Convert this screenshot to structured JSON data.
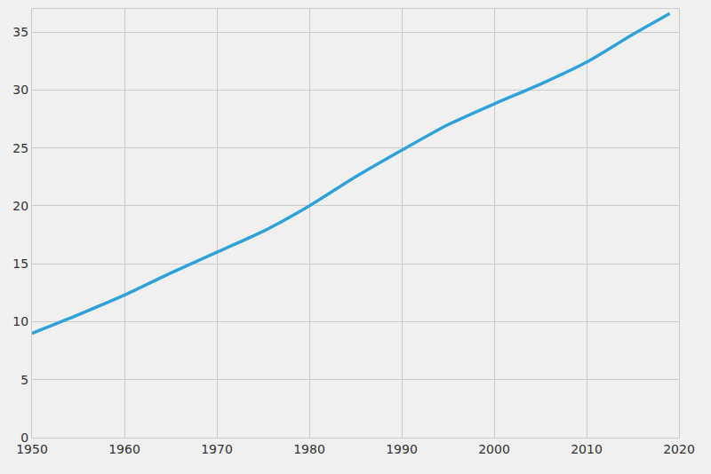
{
  "chart_data": {
    "type": "line",
    "x": [
      1950,
      1955,
      1960,
      1965,
      1970,
      1975,
      1980,
      1985,
      1990,
      1995,
      2000,
      2005,
      2010,
      2015,
      2019
    ],
    "values": [
      9.0,
      10.6,
      12.3,
      14.2,
      16.0,
      17.8,
      20.0,
      22.5,
      24.8,
      27.0,
      28.8,
      30.5,
      32.4,
      34.8,
      36.6
    ],
    "color": "#30a2da",
    "xlim": [
      1950,
      2020
    ],
    "xticks": [
      1950,
      1960,
      1970,
      1980,
      1990,
      2000,
      2010,
      2020
    ],
    "ylim": [
      0,
      37
    ],
    "yticks": [
      0,
      5,
      10,
      15,
      20,
      25,
      30,
      35
    ],
    "grid": true
  }
}
